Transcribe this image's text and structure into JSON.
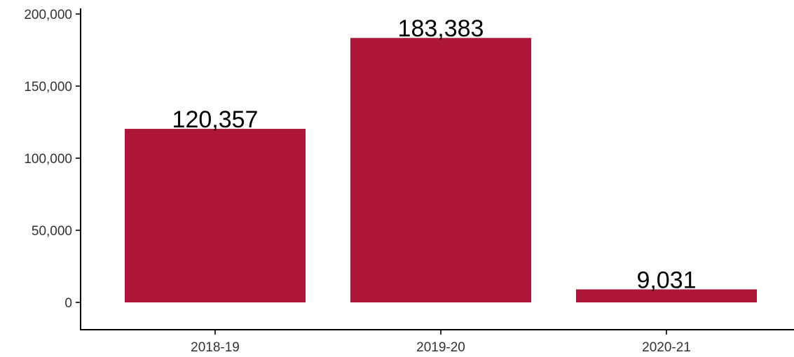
{
  "chart_data": {
    "type": "bar",
    "title": "",
    "xlabel": "",
    "ylabel": "",
    "categories": [
      "2018-19",
      "2019-20",
      "2020-21"
    ],
    "values": [
      120357,
      183383,
      9031
    ],
    "value_labels": [
      "120,357",
      "183,383",
      "9,031"
    ],
    "ylim": [
      0,
      200000
    ],
    "yticks": [
      0,
      50000,
      100000,
      150000,
      200000
    ],
    "ytick_labels": [
      "0",
      "50,000",
      "100,000",
      "150,000",
      "200,000"
    ],
    "bar_color": "#AD1638",
    "grid": false,
    "legend": "none"
  }
}
